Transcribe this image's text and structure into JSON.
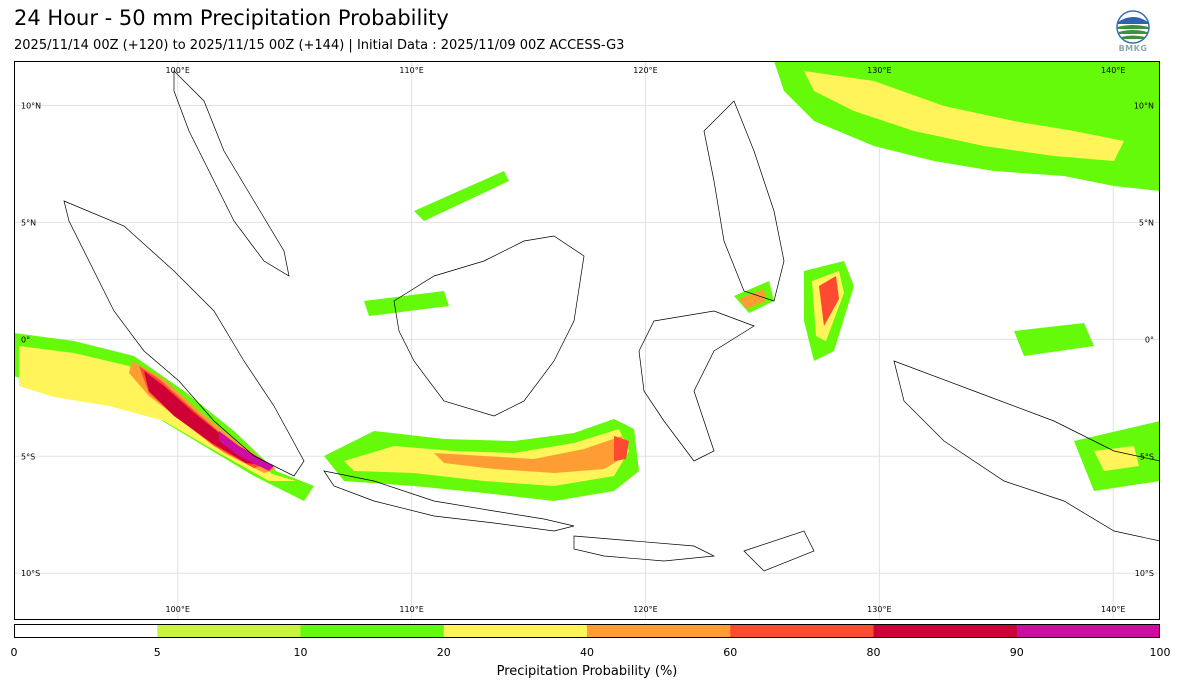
{
  "header": {
    "title": "24 Hour - 50 mm Precipitation Probability",
    "subtitle": "2025/11/14 00Z (+120) to 2025/11/15 00Z (+144) | Initial Data : 2025/11/09 00Z ACCESS-G3",
    "logo_text": "BMKG"
  },
  "map": {
    "lon_range": [
      93,
      142
    ],
    "lat_range": [
      -12,
      11.9
    ],
    "top_lon_labels": [
      "100°E",
      "110°E",
      "120°E",
      "130°E",
      "140°E"
    ],
    "bottom_lon_labels": [
      "100°E",
      "110°E",
      "120°E",
      "130°E",
      "140°E"
    ],
    "left_lat_labels": [
      "10°N",
      "5°N",
      "0°",
      "5°S",
      "10°S"
    ],
    "right_lat_labels": [
      "10°N",
      "5°N",
      "0°",
      "5°S",
      "10°S"
    ],
    "lon_values": [
      100,
      110,
      120,
      130,
      140
    ],
    "lat_values": [
      10,
      5,
      0,
      -5,
      -10
    ]
  },
  "colorbar": {
    "label": "Precipitation Probability (%)",
    "ticks": [
      "0",
      "5",
      "10",
      "20",
      "40",
      "60",
      "80",
      "90",
      "100"
    ],
    "colors": [
      "#ffffff",
      "#c8f53a",
      "#64fa0a",
      "#fff55a",
      "#ff9d35",
      "#ff4a32",
      "#cf0036",
      "#cc0d9f"
    ]
  }
}
